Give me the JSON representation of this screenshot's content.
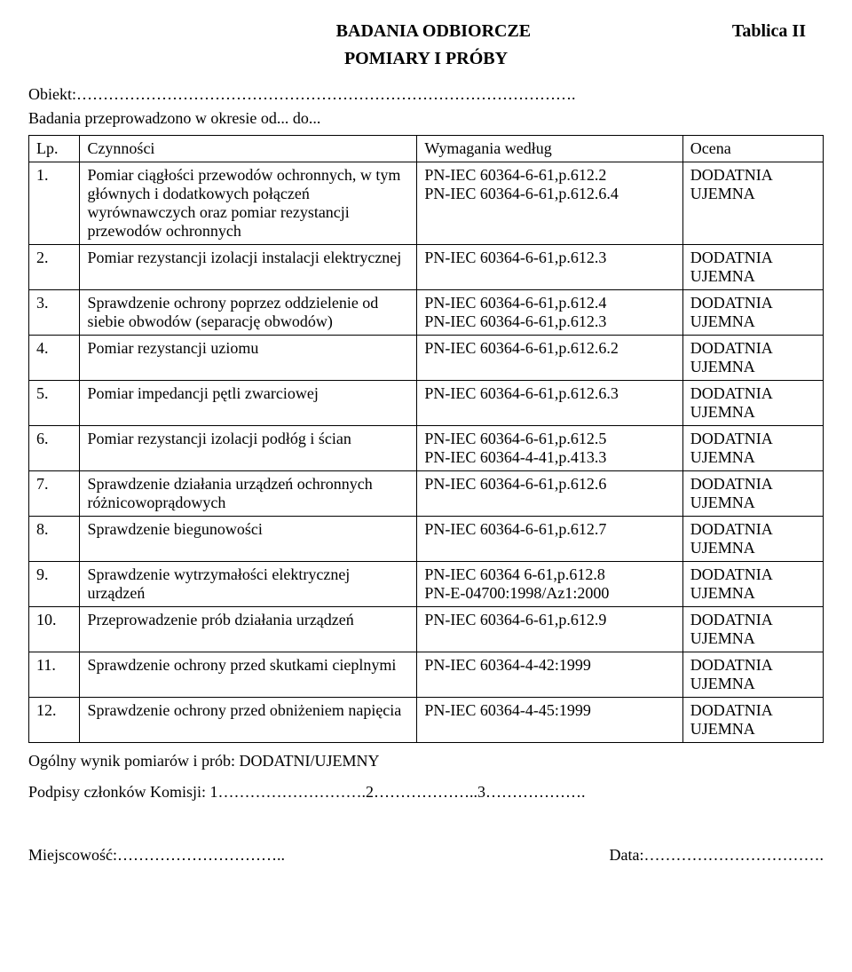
{
  "header": {
    "title_center": "BADANIA ODBIORCZE",
    "title_right": "Tablica II",
    "subtitle": "POMIARY I PRÓBY"
  },
  "meta": {
    "obiekt_label": "Obiekt:………………………………………………………………………………….",
    "badania_label": "Badania przeprowadzono w okresie od... do..."
  },
  "table": {
    "head": {
      "lp": "Lp.",
      "czynnosci": "Czynności",
      "wymagania": "Wymagania według",
      "ocena": "Ocena"
    },
    "rows": [
      {
        "lp": "1.",
        "czynnosci": "Pomiar ciągłości przewodów ochronnych, w tym głównych i dodatkowych połączeń wyrównawczych oraz pomiar rezystancji przewodów ochronnych",
        "wymagania": "PN-IEC 60364-6-61,p.612.2\nPN-IEC 60364-6-61,p.612.6.4",
        "ocena": "DODATNIA\nUJEMNA"
      },
      {
        "lp": "2.",
        "czynnosci": "Pomiar rezystancji izolacji instalacji elektrycznej",
        "wymagania": "PN-IEC 60364-6-61,p.612.3",
        "ocena": "DODATNIA\nUJEMNA"
      },
      {
        "lp": "3.",
        "czynnosci": "Sprawdzenie ochrony poprzez oddzielenie od siebie obwodów (separację obwodów)",
        "wymagania": "PN-IEC 60364-6-61,p.612.4\nPN-IEC 60364-6-61,p.612.3",
        "ocena": "DODATNIA\nUJEMNA"
      },
      {
        "lp": "4.",
        "czynnosci": "Pomiar rezystancji uziomu",
        "wymagania": "PN-IEC 60364-6-61,p.612.6.2",
        "ocena": "DODATNIA\nUJEMNA"
      },
      {
        "lp": "5.",
        "czynnosci": "Pomiar impedancji pętli zwarciowej",
        "wymagania": "PN-IEC 60364-6-61,p.612.6.3",
        "ocena": "DODATNIA\nUJEMNA"
      },
      {
        "lp": "6.",
        "czynnosci": "Pomiar rezystancji izolacji podłóg i ścian",
        "wymagania": "PN-IEC 60364-6-61,p.612.5\nPN-IEC 60364-4-41,p.413.3",
        "ocena": "DODATNIA\nUJEMNA"
      },
      {
        "lp": "7.",
        "czynnosci": "Sprawdzenie działania urządzeń ochronnych różnicowoprądowych",
        "wymagania": "PN-IEC 60364-6-61,p.612.6",
        "ocena": "DODATNIA\nUJEMNA"
      },
      {
        "lp": "8.",
        "czynnosci": "Sprawdzenie biegunowości",
        "wymagania": "PN-IEC 60364-6-61,p.612.7",
        "ocena": "DODATNIA\nUJEMNA"
      },
      {
        "lp": "9.",
        "czynnosci": "Sprawdzenie wytrzymałości elektrycznej urządzeń",
        "wymagania": "PN-IEC 60364 6-61,p.612.8\nPN-E-04700:1998/Az1:2000",
        "ocena": "DODATNIA\nUJEMNA"
      },
      {
        "lp": "10.",
        "czynnosci": "Przeprowadzenie prób działania urządzeń",
        "wymagania": "PN-IEC 60364-6-61,p.612.9",
        "ocena": "DODATNIA\nUJEMNA"
      },
      {
        "lp": "11.",
        "czynnosci": "Sprawdzenie ochrony przed skutkami cieplnymi",
        "wymagania": "PN-IEC 60364-4-42:1999",
        "ocena": "DODATNIA\nUJEMNA"
      },
      {
        "lp": "12.",
        "czynnosci": "Sprawdzenie ochrony przed obniżeniem napięcia",
        "wymagania": "PN-IEC 60364-4-45:1999",
        "ocena": "DODATNIA\nUJEMNA"
      }
    ]
  },
  "footer": {
    "wynik": "Ogólny wynik pomiarów i prób: DODATNI/UJEMNY",
    "podpisy": "Podpisy członków Komisji: 1……………………….2………………..3……………….",
    "miejscowosc": "Miejscowość:…………………………..",
    "data": "Data:……………………………."
  }
}
